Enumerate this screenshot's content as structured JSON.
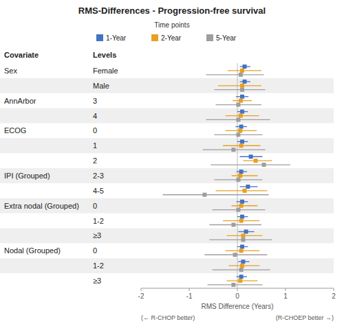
{
  "chart_data": {
    "type": "forest",
    "title": "RMS-Differences - Progression-free survival",
    "legend_title": "Time points",
    "legend": "top",
    "grid": false,
    "column_headers": [
      "Covariate",
      "Levels"
    ],
    "x_label": "RMS Difference (Years)",
    "x_label_left": "(← R-CHOP better)",
    "x_label_right": "(R-CHOEP better →)",
    "xlim": [
      -2,
      2
    ],
    "xticks": [
      -2,
      -1,
      0,
      1,
      2
    ],
    "reference_x": 0,
    "covariates": [
      "Sex",
      null,
      "AnnArbor",
      null,
      "ECOG",
      null,
      null,
      "IPI (Grouped)",
      null,
      "Extra nodal (Grouped)",
      null,
      null,
      "Nodal (Grouped)",
      null,
      null
    ],
    "categories": [
      "Female",
      "Male",
      "3",
      "4",
      "0",
      "1",
      "2",
      "2-3",
      "4-5",
      "0",
      "1-2",
      "≥3",
      "0",
      "1-2",
      "≥3"
    ],
    "series": [
      {
        "name": "1-Year",
        "color": "#4472C4",
        "marker": "square",
        "values": [
          0.15,
          0.15,
          0.1,
          0.1,
          0.08,
          0.1,
          0.28,
          0.08,
          0.22,
          0.1,
          0.1,
          0.18,
          0.1,
          0.12,
          0.08
        ],
        "ci_low": [
          0.05,
          0.05,
          -0.03,
          0.0,
          -0.04,
          0.0,
          0.05,
          -0.02,
          0.05,
          -0.02,
          0.0,
          0.02,
          0.0,
          0.02,
          -0.02
        ],
        "ci_high": [
          0.27,
          0.27,
          0.23,
          0.22,
          0.2,
          0.22,
          0.52,
          0.2,
          0.42,
          0.22,
          0.22,
          0.35,
          0.22,
          0.25,
          0.2
        ]
      },
      {
        "name": "2-Year",
        "color": "#E8A020",
        "marker": "square",
        "values": [
          0.1,
          0.1,
          0.07,
          0.07,
          0.06,
          0.08,
          0.38,
          0.06,
          0.15,
          0.08,
          0.08,
          0.12,
          0.08,
          0.1,
          0.06
        ],
        "ci_low": [
          -0.2,
          -0.4,
          -0.1,
          -0.25,
          -0.25,
          -0.3,
          0.12,
          -0.12,
          -0.45,
          -0.12,
          -0.3,
          -0.22,
          -0.25,
          -0.18,
          -0.22
        ],
        "ci_high": [
          0.5,
          0.5,
          0.3,
          0.45,
          0.4,
          0.48,
          0.72,
          0.42,
          0.62,
          0.42,
          0.46,
          0.52,
          0.46,
          0.46,
          0.42
        ]
      },
      {
        "name": "5-Year",
        "color": "#9E9E9E",
        "marker": "square",
        "values": [
          0.07,
          0.1,
          0.02,
          0.02,
          0.02,
          -0.08,
          0.55,
          0.02,
          -0.68,
          0.02,
          -0.08,
          0.12,
          -0.05,
          0.08,
          -0.08
        ],
        "ci_low": [
          -0.65,
          -0.48,
          -0.45,
          -0.65,
          -0.48,
          -0.72,
          -0.55,
          -0.48,
          -1.55,
          -0.52,
          -0.58,
          -0.58,
          -0.68,
          -0.52,
          -0.62
        ],
        "ci_high": [
          0.55,
          0.58,
          0.5,
          0.68,
          0.52,
          0.58,
          1.1,
          0.52,
          0.65,
          0.58,
          0.5,
          0.72,
          0.62,
          0.68,
          0.52
        ]
      }
    ]
  }
}
